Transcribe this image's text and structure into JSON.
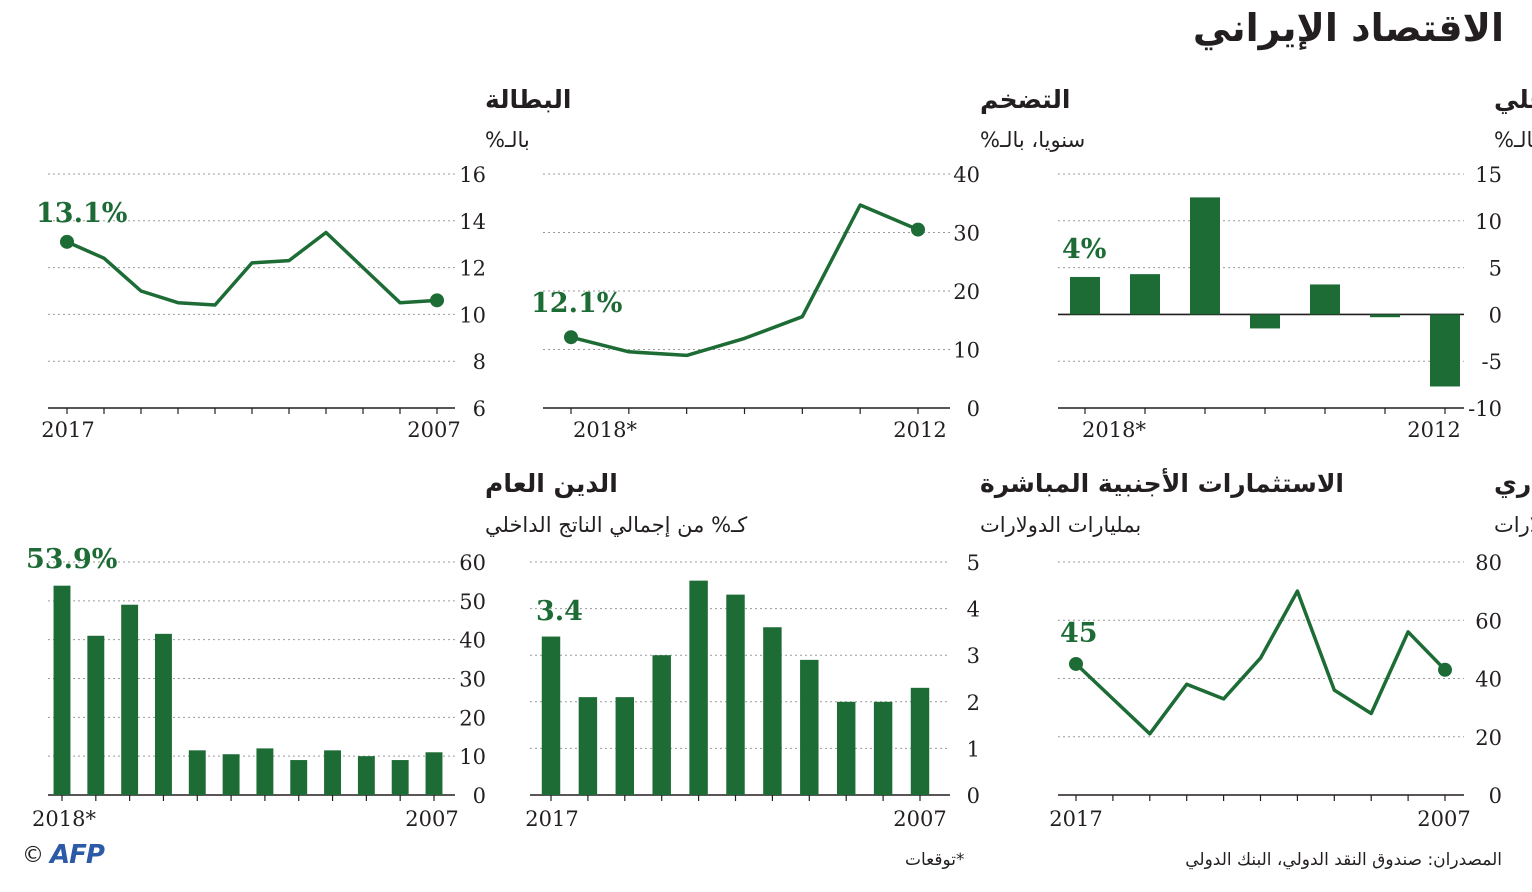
{
  "title": "الاقتصاد الإيراني",
  "sources": "المصدران: صندوق النقد الدولي، البنك الدولي",
  "note": "*توقعات",
  "logo": {
    "copyright": "©",
    "brand": "AFP"
  },
  "colors": {
    "series": "#1d6b35",
    "axis": "#231f20",
    "grid": "#9a9a9a"
  },
  "chart_data": [
    {
      "id": "gdp",
      "type": "bar",
      "title": "نمو إجمالي الناتج الداخلي",
      "subtitle": "سنويا، بالـ%",
      "x": [
        "2018*",
        "2017",
        "2016",
        "2015",
        "2014",
        "2013",
        "2012"
      ],
      "values": [
        4,
        4.3,
        12.5,
        -1.5,
        3.2,
        -0.3,
        -7.7
      ],
      "ylim": [
        -10,
        15
      ],
      "yticks": [
        -10,
        -5,
        0,
        5,
        10,
        15
      ],
      "x_labels": [
        "2018*",
        "2012"
      ],
      "highlight": "4%"
    },
    {
      "id": "inflation",
      "type": "line",
      "title": "التضخم",
      "subtitle": "سنويا، بالـ%",
      "x": [
        "2018*",
        "2017",
        "2016",
        "2015",
        "2014",
        "2013",
        "2012"
      ],
      "values": [
        12.1,
        9.6,
        9.0,
        11.9,
        15.6,
        34.7,
        30.5
      ],
      "ylim": [
        0,
        40
      ],
      "yticks": [
        0,
        10,
        20,
        30,
        40
      ],
      "x_labels": [
        "2018*",
        "2012"
      ],
      "highlight": "12.1%"
    },
    {
      "id": "unemployment",
      "type": "line",
      "title": "البطالة",
      "subtitle": "بالـ%",
      "x": [
        "2017",
        "2016",
        "2015",
        "2014",
        "2013",
        "2012",
        "2011",
        "2010",
        "2009",
        "2008",
        "2007"
      ],
      "values": [
        13.1,
        12.4,
        11.0,
        10.5,
        10.4,
        12.2,
        12.3,
        13.5,
        12.0,
        10.5,
        10.6
      ],
      "ylim": [
        6,
        16
      ],
      "yticks": [
        6,
        8,
        10,
        12,
        14,
        16
      ],
      "x_labels": [
        "2017",
        "2007"
      ],
      "highlight": "13.1%"
    },
    {
      "id": "trade",
      "type": "line",
      "title": "الميزان التجاري",
      "subtitle": "تجارة السلع، بمليارات الدولارات",
      "x": [
        "2017",
        "2016",
        "2015",
        "2014",
        "2013",
        "2012",
        "2011",
        "2010",
        "2009",
        "2008",
        "2007"
      ],
      "values": [
        45,
        33,
        21,
        38,
        33,
        47,
        70,
        36,
        28,
        56,
        43
      ],
      "ylim": [
        0,
        80
      ],
      "yticks": [
        0,
        20,
        40,
        60,
        80
      ],
      "x_labels": [
        "2017",
        "2007"
      ],
      "highlight": "45"
    },
    {
      "id": "fdi",
      "type": "bar",
      "title": "الاستثمارات الأجنبية المباشرة",
      "subtitle": "بمليارات الدولارات",
      "x": [
        "2017",
        "2016",
        "2015",
        "2014",
        "2013",
        "2012",
        "2011",
        "2010",
        "2009",
        "2008",
        "2007"
      ],
      "values": [
        3.4,
        2.1,
        2.1,
        3.0,
        4.6,
        4.3,
        3.6,
        2.9,
        2.0,
        2.0,
        2.3
      ],
      "ylim": [
        0,
        5
      ],
      "yticks": [
        0,
        1,
        2,
        3,
        4,
        5
      ],
      "x_labels": [
        "2017",
        "2007"
      ],
      "highlight": "3.4"
    },
    {
      "id": "debt",
      "type": "bar",
      "title": "الدين العام",
      "subtitle": "كـ% من إجمالي الناتج الداخلي",
      "x": [
        "2018*",
        "2017",
        "2016",
        "2015",
        "2014",
        "2013",
        "2012",
        "2011",
        "2010",
        "2009",
        "2008",
        "2007"
      ],
      "values": [
        53.9,
        41,
        49,
        41.5,
        11.5,
        10.5,
        12,
        9,
        11.5,
        10,
        9,
        11
      ],
      "ylim": [
        0,
        60
      ],
      "yticks": [
        0,
        10,
        20,
        30,
        40,
        50,
        60
      ],
      "x_labels": [
        "2018*",
        "2007"
      ],
      "highlight": "53.9%"
    }
  ]
}
